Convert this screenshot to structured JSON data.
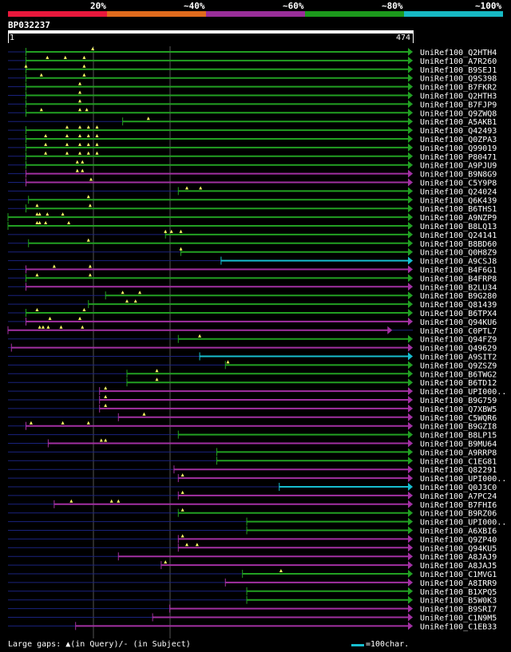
{
  "legend": {
    "labels": [
      "20%",
      "~40%",
      "~60%",
      "~80%",
      "~100%"
    ],
    "colors": [
      "#e8183c",
      "#e06b1d",
      "#9a2e9a",
      "#1c9a1c",
      "#17b9c4"
    ]
  },
  "query": {
    "id": "BP032237",
    "start": "1",
    "end": "474",
    "length": 474
  },
  "colors": {
    "query_bar": "#ffffff",
    "thin_line": "#1a237e",
    "grid": "#555555",
    "marker": "#ffff66"
  },
  "hits": [
    {
      "label": "UniRef100_Q2HTH4",
      "start": 22,
      "end": 474,
      "color": "green",
      "gaps": [
        100
      ]
    },
    {
      "label": "UniRef100_A7R260",
      "start": 22,
      "end": 474,
      "color": "green",
      "gaps": [
        47,
        68,
        90
      ]
    },
    {
      "label": "UniRef100_B9SEJ1",
      "start": 22,
      "end": 474,
      "color": "green",
      "gaps": [
        22,
        90
      ]
    },
    {
      "label": "UniRef100_Q9S398",
      "start": 22,
      "end": 474,
      "color": "green",
      "gaps": [
        40,
        90
      ]
    },
    {
      "label": "UniRef100_B7FKR2",
      "start": 22,
      "end": 474,
      "color": "green",
      "gaps": [
        85
      ]
    },
    {
      "label": "UniRef100_Q2HTH3",
      "start": 22,
      "end": 474,
      "color": "green",
      "gaps": [
        85
      ]
    },
    {
      "label": "UniRef100_B7FJP9",
      "start": 22,
      "end": 474,
      "color": "green",
      "gaps": [
        85
      ]
    },
    {
      "label": "UniRef100_Q9ZWQ8",
      "start": 22,
      "end": 474,
      "color": "green",
      "gaps": [
        40,
        85,
        93
      ]
    },
    {
      "label": "UniRef100_A5AKB1",
      "start": 135,
      "end": 474,
      "color": "green",
      "gaps": [
        165
      ]
    },
    {
      "label": "UniRef100_Q42493",
      "start": 22,
      "end": 474,
      "color": "green",
      "gaps": [
        70,
        85,
        95,
        105
      ]
    },
    {
      "label": "UniRef100_Q0ZPA3",
      "start": 22,
      "end": 474,
      "color": "green",
      "gaps": [
        45,
        70,
        85,
        95,
        105
      ]
    },
    {
      "label": "UniRef100_Q99019",
      "start": 22,
      "end": 474,
      "color": "green",
      "gaps": [
        45,
        70,
        85,
        95,
        105
      ]
    },
    {
      "label": "UniRef100_P80471",
      "start": 22,
      "end": 474,
      "color": "green",
      "gaps": [
        45,
        70,
        85,
        95,
        105
      ]
    },
    {
      "label": "UniRef100_A9PJU9",
      "start": 22,
      "end": 474,
      "color": "green",
      "gaps": [
        82,
        88
      ]
    },
    {
      "label": "UniRef100_B9N8G9",
      "start": 22,
      "end": 474,
      "color": "purple",
      "gaps": [
        82,
        88
      ]
    },
    {
      "label": "UniRef100_C5Y9P8",
      "start": 22,
      "end": 474,
      "color": "purple",
      "gaps": [
        98
      ]
    },
    {
      "label": "UniRef100_Q24024",
      "start": 200,
      "end": 474,
      "color": "green",
      "gaps": [
        210,
        226
      ]
    },
    {
      "label": "UniRef100_Q6K439",
      "start": 25,
      "end": 474,
      "color": "green",
      "gaps": [
        95
      ]
    },
    {
      "label": "UniRef100_B6THS1",
      "start": 22,
      "end": 474,
      "color": "green",
      "gaps": [
        35,
        97
      ]
    },
    {
      "label": "UniRef100_A9NZP9",
      "start": 1,
      "end": 474,
      "color": "green",
      "gaps": [
        35,
        38,
        47,
        65
      ]
    },
    {
      "label": "UniRef100_B8LQ13",
      "start": 1,
      "end": 474,
      "color": "green",
      "gaps": [
        35,
        38,
        45,
        72
      ]
    },
    {
      "label": "UniRef100_Q24141",
      "start": 185,
      "end": 474,
      "color": "green",
      "gaps": [
        185,
        192,
        203
      ]
    },
    {
      "label": "UniRef100_B8BD60",
      "start": 25,
      "end": 474,
      "color": "green",
      "gaps": [
        95
      ]
    },
    {
      "label": "UniRef100_Q0H8Z9",
      "start": 203,
      "end": 474,
      "color": "green",
      "gaps": [
        203
      ]
    },
    {
      "label": "UniRef100_A9CSJ8",
      "start": 250,
      "end": 474,
      "color": "cyan",
      "gaps": []
    },
    {
      "label": "UniRef100_B4F6G1",
      "start": 22,
      "end": 474,
      "color": "purple",
      "gaps": [
        55,
        97
      ]
    },
    {
      "label": "UniRef100_B4FRP8",
      "start": 22,
      "end": 474,
      "color": "green",
      "gaps": [
        35,
        97
      ]
    },
    {
      "label": "UniRef100_B2LU34",
      "start": 22,
      "end": 474,
      "color": "purple",
      "gaps": []
    },
    {
      "label": "UniRef100_B9G280",
      "start": 115,
      "end": 474,
      "color": "green",
      "gaps": [
        135,
        155
      ]
    },
    {
      "label": "UniRef100_Q81439",
      "start": 95,
      "end": 474,
      "color": "green",
      "gaps": [
        140,
        150
      ]
    },
    {
      "label": "UniRef100_B6TPX4",
      "start": 22,
      "end": 474,
      "color": "green",
      "gaps": [
        35,
        90
      ]
    },
    {
      "label": "UniRef100_Q94KU6",
      "start": 22,
      "end": 474,
      "color": "purple",
      "gaps": [
        50,
        85
      ]
    },
    {
      "label": "UniRef100_C0PTL7",
      "start": 1,
      "end": 450,
      "color": "purple",
      "gaps": [
        38,
        42,
        48,
        63,
        88
      ]
    },
    {
      "label": "UniRef100_Q94FZ9",
      "start": 200,
      "end": 474,
      "color": "green",
      "gaps": [
        225
      ]
    },
    {
      "label": "UniRef100_Q49629",
      "start": 5,
      "end": 474,
      "color": "purple",
      "gaps": []
    },
    {
      "label": "UniRef100_A9SIT2",
      "start": 225,
      "end": 474,
      "color": "cyan",
      "gaps": []
    },
    {
      "label": "UniRef100_Q9ZSZ9",
      "start": 255,
      "end": 474,
      "color": "green",
      "gaps": [
        258
      ]
    },
    {
      "label": "UniRef100_B6TWG2",
      "start": 140,
      "end": 474,
      "color": "green",
      "gaps": [
        175
      ]
    },
    {
      "label": "UniRef100_B6TD12",
      "start": 140,
      "end": 474,
      "color": "green",
      "gaps": [
        175
      ]
    },
    {
      "label": "UniRef100_UPI000..",
      "start": 108,
      "end": 474,
      "color": "purple",
      "gaps": [
        115
      ]
    },
    {
      "label": "UniRef100_B9G759",
      "start": 108,
      "end": 474,
      "color": "purple",
      "gaps": [
        115
      ]
    },
    {
      "label": "UniRef100_Q7XBW5",
      "start": 108,
      "end": 474,
      "color": "purple",
      "gaps": [
        115
      ]
    },
    {
      "label": "UniRef100_C5WQR6",
      "start": 130,
      "end": 474,
      "color": "purple",
      "gaps": [
        160
      ]
    },
    {
      "label": "UniRef100_B9GZI8",
      "start": 22,
      "end": 474,
      "color": "purple",
      "gaps": [
        28,
        65,
        95
      ]
    },
    {
      "label": "UniRef100_B8LP15",
      "start": 200,
      "end": 474,
      "color": "green",
      "gaps": []
    },
    {
      "label": "UniRef100_B9MU64",
      "start": 48,
      "end": 474,
      "color": "purple",
      "gaps": [
        110,
        115
      ]
    },
    {
      "label": "UniRef100_A9RRP8",
      "start": 245,
      "end": 474,
      "color": "green",
      "gaps": []
    },
    {
      "label": "UniRef100_C1EG81",
      "start": 245,
      "end": 474,
      "color": "green",
      "gaps": []
    },
    {
      "label": "UniRef100_Q82291",
      "start": 195,
      "end": 474,
      "color": "purple",
      "gaps": []
    },
    {
      "label": "UniRef100_UPI000..",
      "start": 200,
      "end": 474,
      "color": "purple",
      "gaps": [
        205
      ]
    },
    {
      "label": "UniRef100_Q0J3C0",
      "start": 318,
      "end": 474,
      "color": "cyan",
      "gaps": []
    },
    {
      "label": "UniRef100_A7PC24",
      "start": 200,
      "end": 474,
      "color": "purple",
      "gaps": [
        205
      ]
    },
    {
      "label": "UniRef100_B7FHI6",
      "start": 55,
      "end": 474,
      "color": "purple",
      "gaps": [
        75,
        122,
        130
      ]
    },
    {
      "label": "UniRef100_B9RZ06",
      "start": 200,
      "end": 474,
      "color": "green",
      "gaps": [
        205
      ]
    },
    {
      "label": "UniRef100_UPI000..",
      "start": 280,
      "end": 474,
      "color": "green",
      "gaps": []
    },
    {
      "label": "UniRef100_A6XBI6",
      "start": 280,
      "end": 474,
      "color": "green",
      "gaps": []
    },
    {
      "label": "UniRef100_Q9ZP40",
      "start": 200,
      "end": 474,
      "color": "purple",
      "gaps": [
        205
      ]
    },
    {
      "label": "UniRef100_Q94KU5",
      "start": 200,
      "end": 474,
      "color": "purple",
      "gaps": [
        210,
        222
      ]
    },
    {
      "label": "UniRef100_A8JAJ9",
      "start": 130,
      "end": 474,
      "color": "purple",
      "gaps": []
    },
    {
      "label": "UniRef100_A8JAJ5",
      "start": 180,
      "end": 474,
      "color": "purple",
      "gaps": [
        185
      ]
    },
    {
      "label": "UniRef100_C1MVG1",
      "start": 275,
      "end": 474,
      "color": "green",
      "gaps": [
        320
      ]
    },
    {
      "label": "UniRef100_A8IRR9",
      "start": 255,
      "end": 474,
      "color": "purple",
      "gaps": []
    },
    {
      "label": "UniRef100_B1XPQ5",
      "start": 280,
      "end": 474,
      "color": "green",
      "gaps": []
    },
    {
      "label": "UniRef100_B5W0K3",
      "start": 280,
      "end": 474,
      "color": "green",
      "gaps": []
    },
    {
      "label": "UniRef100_B9SRI7",
      "start": 190,
      "end": 474,
      "color": "purple",
      "gaps": []
    },
    {
      "label": "UniRef100_C1N9M5",
      "start": 170,
      "end": 474,
      "color": "purple",
      "gaps": []
    },
    {
      "label": "UniRef100_C1EB33",
      "start": 80,
      "end": 474,
      "color": "purple",
      "gaps": []
    }
  ],
  "footer": {
    "text": "Large gaps: ▲(in Query)/- (in Subject)",
    "scale_label": "=100char."
  }
}
